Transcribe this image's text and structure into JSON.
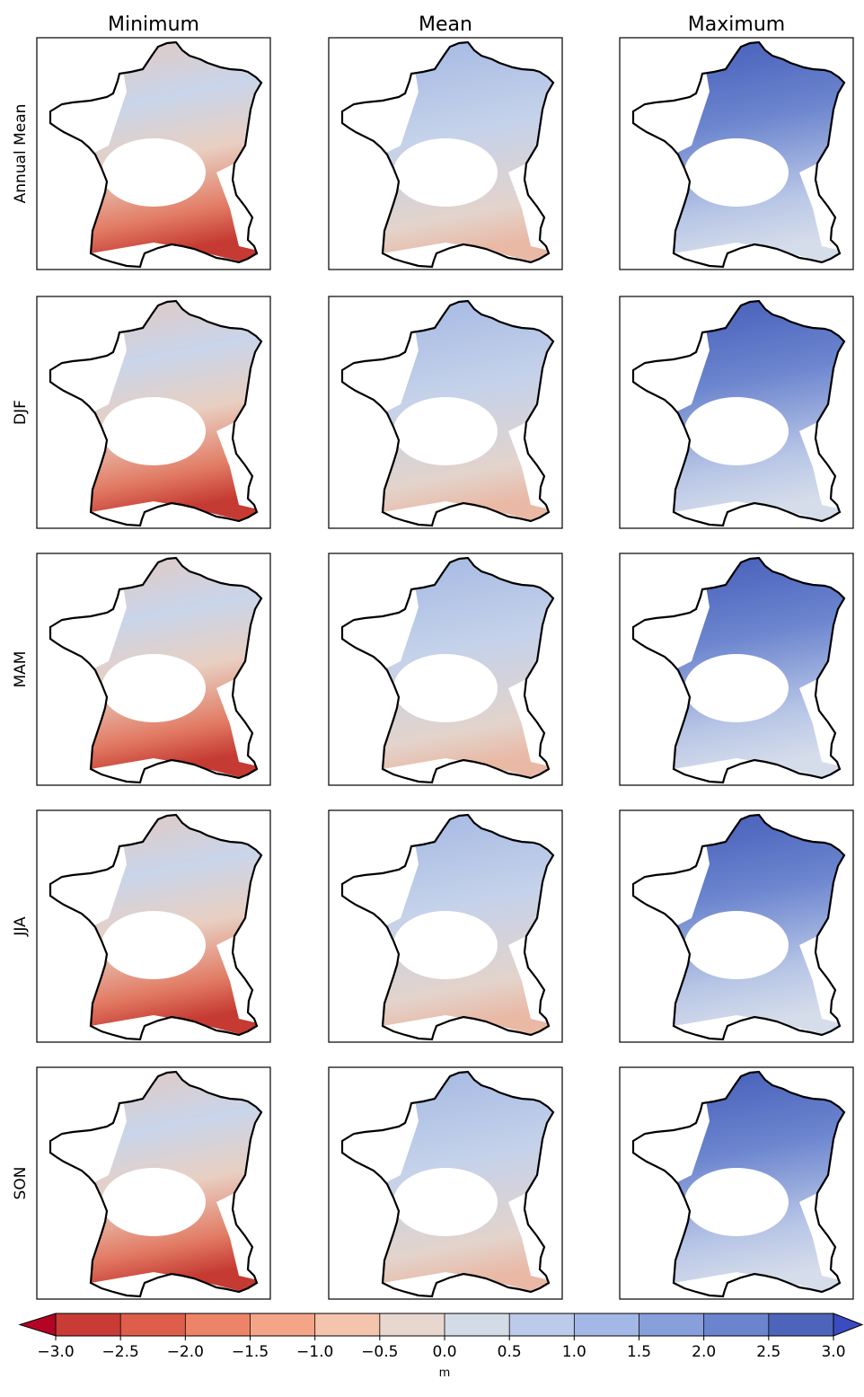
{
  "columns": [
    "Minimum",
    "Mean",
    "Maximum"
  ],
  "rows": [
    "Annual Mean",
    "DJF",
    "MAM",
    "JJA",
    "SON"
  ],
  "colorbar": {
    "label": "m",
    "ticks": [
      {
        "value": -3.0,
        "label": "−3.0"
      },
      {
        "value": -2.5,
        "label": "−2.5"
      },
      {
        "value": -2.0,
        "label": "−2.0"
      },
      {
        "value": -1.5,
        "label": "−1.5"
      },
      {
        "value": -1.0,
        "label": "−1.0"
      },
      {
        "value": -0.5,
        "label": "−0.5"
      },
      {
        "value": 0.0,
        "label": "0.0"
      },
      {
        "value": 0.5,
        "label": "0.5"
      },
      {
        "value": 1.0,
        "label": "1.0"
      },
      {
        "value": 1.5,
        "label": "1.5"
      },
      {
        "value": 2.0,
        "label": "2.0"
      },
      {
        "value": 2.5,
        "label": "2.5"
      },
      {
        "value": 3.0,
        "label": "3.0"
      }
    ],
    "colors": [
      "#c93c35",
      "#dd5e4b",
      "#ee8467",
      "#f4a587",
      "#f5c4ad",
      "#e8d7cf",
      "#d3dbe6",
      "#bccbea",
      "#a3b8e6",
      "#879fdb",
      "#6a85ce",
      "#4c65bb"
    ],
    "under_color": "#b40426",
    "over_color": "#3b4cc0"
  }
}
